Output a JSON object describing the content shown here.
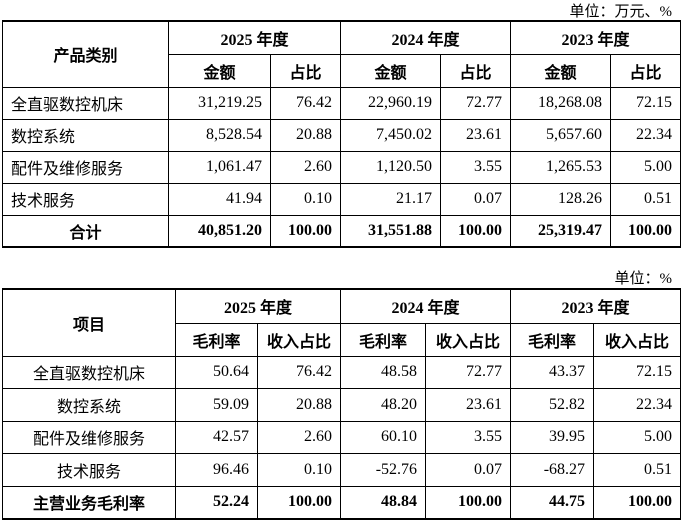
{
  "table1": {
    "unit": "单位：万元、%",
    "header": {
      "first": "产品类别",
      "years": [
        "2025 年度",
        "2024 年度",
        "2023 年度"
      ],
      "subheaders": [
        "金额",
        "占比",
        "金额",
        "占比",
        "金额",
        "占比"
      ]
    },
    "rows": [
      [
        "全直驱数控机床",
        "31,219.25",
        "76.42",
        "22,960.19",
        "72.77",
        "18,268.08",
        "72.15"
      ],
      [
        "数控系统",
        "8,528.54",
        "20.88",
        "7,450.02",
        "23.61",
        "5,657.60",
        "22.34"
      ],
      [
        "配件及维修服务",
        "1,061.47",
        "2.60",
        "1,120.50",
        "3.55",
        "1,265.53",
        "5.00"
      ],
      [
        "技术服务",
        "41.94",
        "0.10",
        "21.17",
        "0.07",
        "128.26",
        "0.51"
      ],
      [
        "合计",
        "40,851.20",
        "100.00",
        "31,551.88",
        "100.00",
        "25,319.47",
        "100.00"
      ]
    ]
  },
  "table2": {
    "unit": "单位：%",
    "header": {
      "first": "项目",
      "years": [
        "2025 年度",
        "2024 年度",
        "2023 年度"
      ],
      "subheaders": [
        "毛利率",
        "收入占比",
        "毛利率",
        "收入占比",
        "毛利率",
        "收入占比"
      ]
    },
    "rows": [
      [
        "全直驱数控机床",
        "50.64",
        "76.42",
        "48.58",
        "72.77",
        "43.37",
        "72.15"
      ],
      [
        "数控系统",
        "59.09",
        "20.88",
        "48.20",
        "23.61",
        "52.82",
        "22.34"
      ],
      [
        "配件及维修服务",
        "42.57",
        "2.60",
        "60.10",
        "3.55",
        "39.95",
        "5.00"
      ],
      [
        "技术服务",
        "96.46",
        "0.10",
        "-52.76",
        "0.07",
        "-68.27",
        "0.51"
      ],
      [
        "主营业务毛利率",
        "52.24",
        "100.00",
        "48.84",
        "100.00",
        "44.75",
        "100.00"
      ]
    ]
  }
}
